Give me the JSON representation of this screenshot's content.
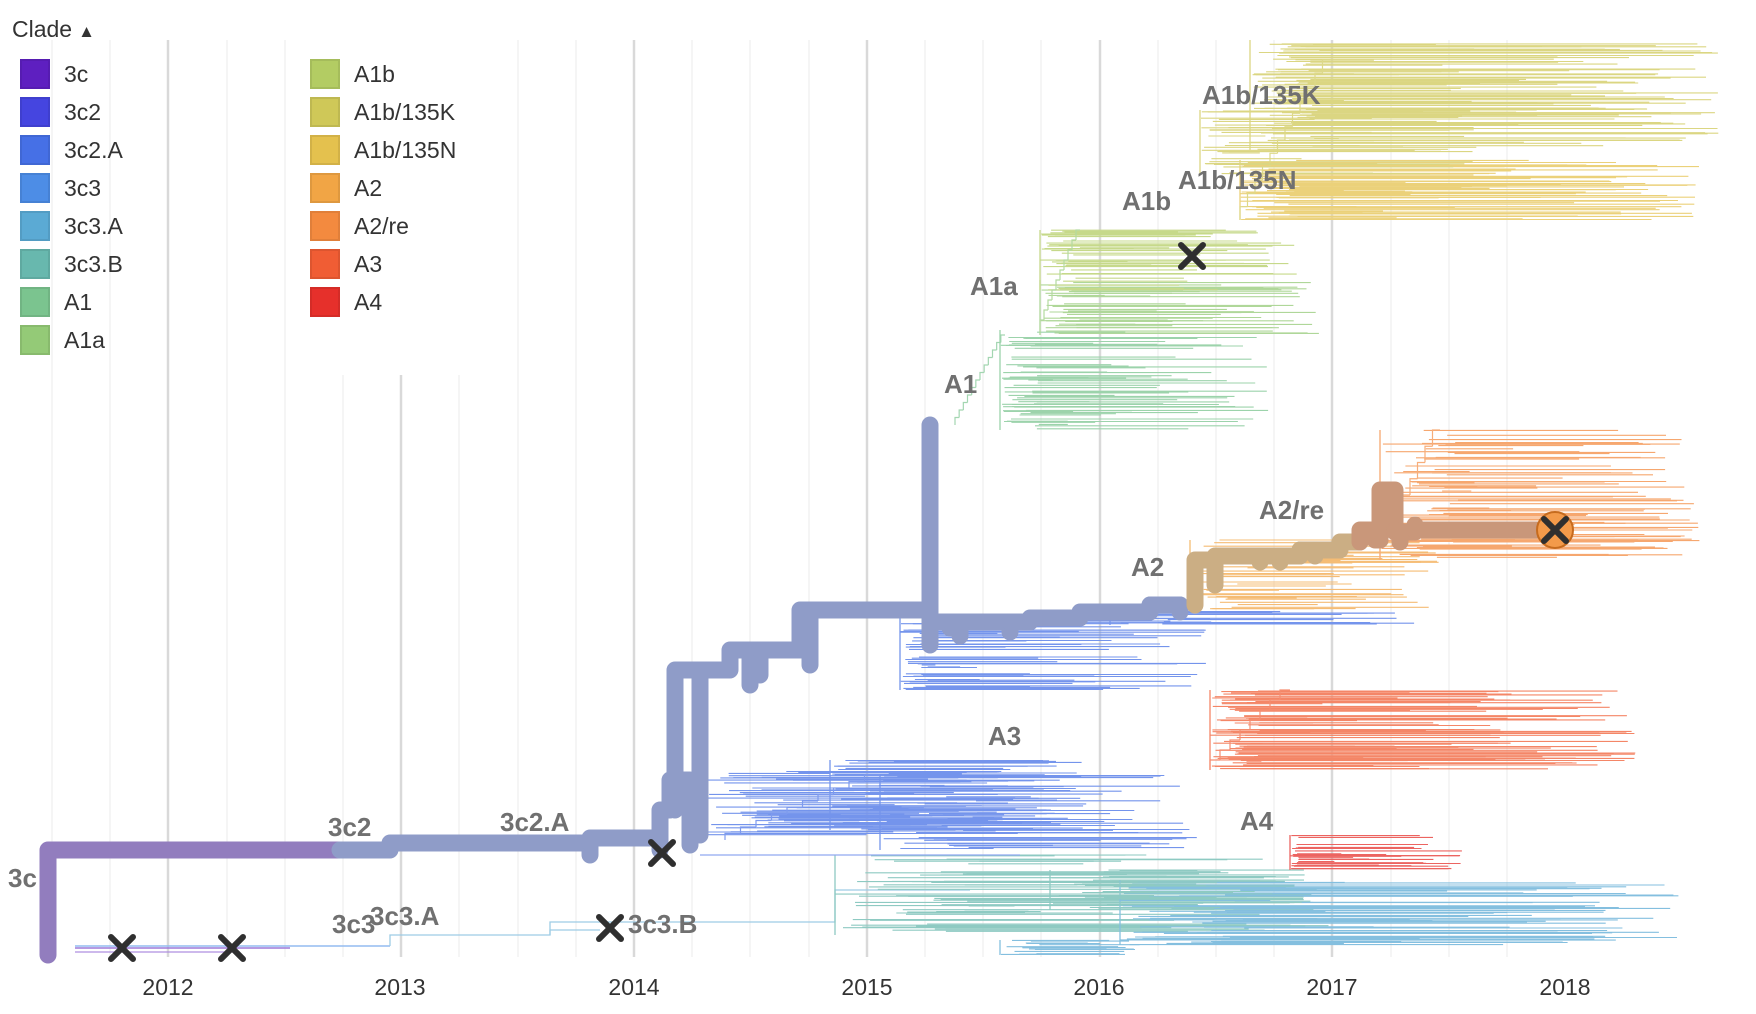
{
  "legend": {
    "title": "Clade",
    "toggle_icon": "chevron-up-icon",
    "items": [
      {
        "label": "3c",
        "color": "#5E1FC0"
      },
      {
        "label": "3c2",
        "color": "#4545E0"
      },
      {
        "label": "3c2.A",
        "color": "#4670E6"
      },
      {
        "label": "3c3",
        "color": "#4D8DE6"
      },
      {
        "label": "3c3.A",
        "color": "#5BAAD4"
      },
      {
        "label": "3c3.B",
        "color": "#68B8AE"
      },
      {
        "label": "A1",
        "color": "#7BC48F"
      },
      {
        "label": "A1a",
        "color": "#94CA77"
      },
      {
        "label": "A1b",
        "color": "#B3CC63"
      },
      {
        "label": "A1b/135K",
        "color": "#CFC858"
      },
      {
        "label": "A1b/135N",
        "color": "#E4C14E"
      },
      {
        "label": "A2",
        "color": "#F1A545"
      },
      {
        "label": "A2/re",
        "color": "#F38A3F"
      },
      {
        "label": "A3",
        "color": "#F05D34"
      },
      {
        "label": "A4",
        "color": "#E6302B"
      }
    ]
  },
  "axis": {
    "ticks": [
      "2012",
      "2013",
      "2014",
      "2015",
      "2016",
      "2017",
      "2018"
    ]
  },
  "clade_labels": [
    "3c",
    "3c2",
    "3c2.A",
    "3c3",
    "3c3.A",
    "3c3.B",
    "A1",
    "A1a",
    "A1b",
    "A1b/135K",
    "A1b/135N",
    "A2",
    "A2/re",
    "A3",
    "A4"
  ],
  "colors": {
    "highlight_branch": "#8F9CC8",
    "root_branch": "#927DBE",
    "a2_branch": "#CBAE84",
    "a2re_branch": "#C9977A",
    "selected_tip": "#F39A4A",
    "clade_label": "#707070",
    "mutation_marker": "#2f2f2f"
  }
}
